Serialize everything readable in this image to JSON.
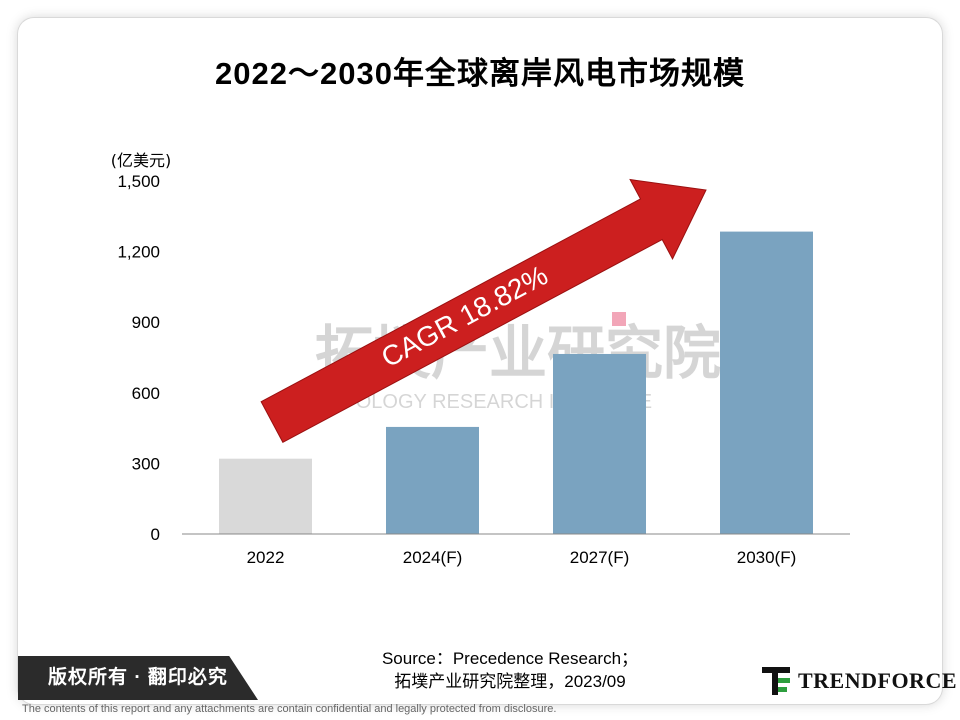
{
  "slide": {
    "title": "2022～2030年全球离岸风电市场规模"
  },
  "watermark": {
    "cn": "拓墣产业研究院",
    "en": "TOPOLOGY RESEARCH INSTITUTE"
  },
  "footer": {
    "rights": "版权所有 · 翻印必究",
    "source_line1": "Source：Precedence Research；",
    "source_line2": "拓墣产业研究院整理，2023/09",
    "brand": "TRENDFORCE",
    "disclaimer": "The contents of this report and any attachments are contain confidential and legally protected from disclosure."
  },
  "colors": {
    "bar_actual": "#d9d9d9",
    "bar_forecast": "#7aa3c0",
    "arrow": "#cc1f1f",
    "grid_axis": "#888888"
  },
  "chart_data": {
    "type": "bar",
    "ylabel": "(亿美元)",
    "ylim": [
      0,
      1500
    ],
    "yticks": [
      0,
      300,
      600,
      900,
      1200,
      1500
    ],
    "ytick_labels": [
      "0",
      "300",
      "600",
      "900",
      "1,200",
      "1,500"
    ],
    "categories": [
      "2022",
      "2024(F)",
      "2027(F)",
      "2030(F)"
    ],
    "values": [
      320,
      455,
      765,
      1285
    ],
    "bar_colors": [
      "#d9d9d9",
      "#7aa3c0",
      "#7aa3c0",
      "#7aa3c0"
    ],
    "annotation": "CAGR 18.82%",
    "grid": false
  }
}
